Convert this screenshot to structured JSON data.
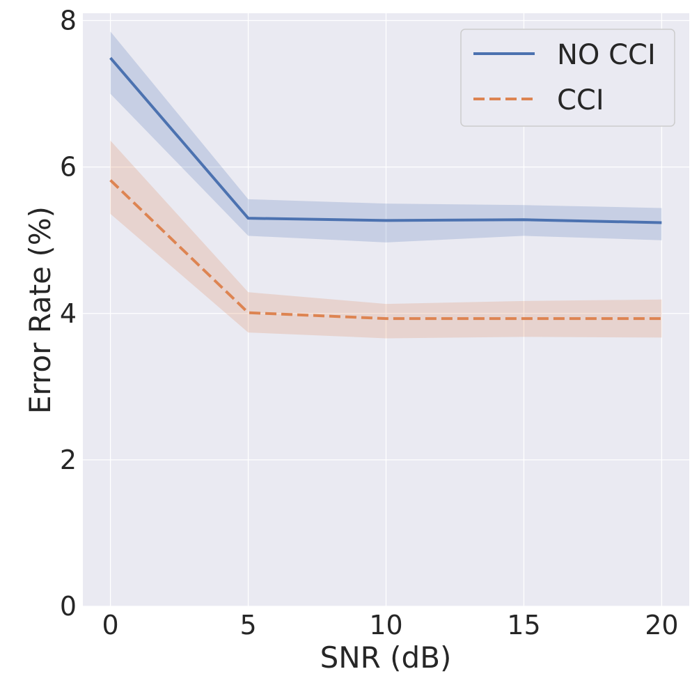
{
  "chart_data": {
    "type": "line",
    "title": "",
    "xlabel": "SNR (dB)",
    "ylabel": "Error Rate (%)",
    "xlim": [
      -1,
      21
    ],
    "ylim": [
      0,
      8.1
    ],
    "xticks": [
      0,
      5,
      10,
      15,
      20
    ],
    "yticks": [
      0,
      2,
      4,
      6,
      8
    ],
    "xtick_labels": [
      "0",
      "5",
      "10",
      "15",
      "20"
    ],
    "ytick_labels": [
      "0",
      "2",
      "4",
      "6",
      "8"
    ],
    "grid": true,
    "legend_position": "top-right",
    "x": [
      0,
      5,
      10,
      15,
      20
    ],
    "series": [
      {
        "name": "NO CCI",
        "values": [
          7.49,
          5.3,
          5.27,
          5.28,
          5.24
        ],
        "lower": [
          7.0,
          5.06,
          4.97,
          5.06,
          5.0
        ],
        "upper": [
          7.85,
          5.56,
          5.5,
          5.48,
          5.44
        ],
        "color": "#4c72b0",
        "dash": "solid"
      },
      {
        "name": "CCI",
        "values": [
          5.82,
          4.01,
          3.93,
          3.93,
          3.93
        ],
        "lower": [
          5.36,
          3.74,
          3.66,
          3.68,
          3.67
        ],
        "upper": [
          6.36,
          4.29,
          4.13,
          4.17,
          4.19
        ],
        "color": "#dd8452",
        "dash": "dashed"
      }
    ]
  },
  "theme": {
    "plot_background": "#eaeaf2",
    "grid_color": "#ffffff",
    "text_color": "#262626",
    "legend_background": "#eaeaf2",
    "legend_border": "#cccccc"
  }
}
